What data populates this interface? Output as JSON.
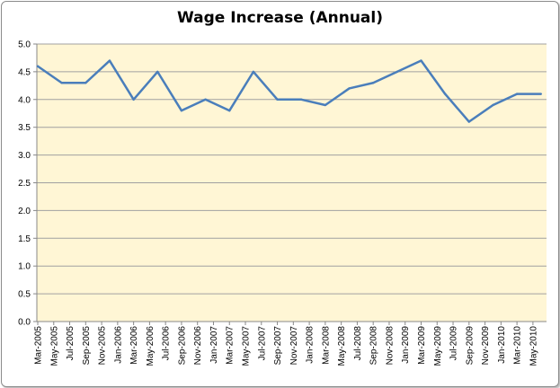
{
  "chart_data": {
    "type": "line",
    "title": "Wage Increase (Annual)",
    "xlabel": "",
    "ylabel": "",
    "ylim": [
      0,
      5
    ],
    "yticks": [
      "0.0",
      "0.5",
      "1.0",
      "1.5",
      "2.0",
      "2.5",
      "3.0",
      "3.5",
      "4.0",
      "4.5",
      "5.0"
    ],
    "xtick_labels": [
      "Mar-2005",
      "May-2005",
      "Jul-2005",
      "Sep-2005",
      "Nov-2005",
      "Jan-2006",
      "Mar-2006",
      "May-2006",
      "Jul-2006",
      "Sep-2006",
      "Nov-2006",
      "Jan-2007",
      "Mar-2007",
      "May-2007",
      "Jul-2007",
      "Sep-2007",
      "Nov-2007",
      "Jan-2008",
      "Mar-2008",
      "May-2008",
      "Jul-2008",
      "Sep-2008",
      "Nov-2008",
      "Jan-2009",
      "Mar-2009",
      "May-2009",
      "Jul-2009",
      "Sep-2009",
      "Nov-2009",
      "Jan-2010",
      "Mar-2010",
      "May-2010"
    ],
    "x": [
      "Mar-2005",
      "Jun-2005",
      "Sep-2005",
      "Dec-2005",
      "Mar-2006",
      "Jun-2006",
      "Sep-2006",
      "Dec-2006",
      "Mar-2007",
      "Jun-2007",
      "Sep-2007",
      "Dec-2007",
      "Mar-2008",
      "Jun-2008",
      "Sep-2008",
      "Dec-2008",
      "Mar-2009",
      "Jun-2009",
      "Sep-2009",
      "Dec-2009",
      "Mar-2010",
      "Jun-2010"
    ],
    "values": [
      4.6,
      4.3,
      4.3,
      4.7,
      4.0,
      4.5,
      3.8,
      4.0,
      3.8,
      4.5,
      4.0,
      4.0,
      3.9,
      4.2,
      4.3,
      4.5,
      4.7,
      4.1,
      3.6,
      3.9,
      4.1,
      4.1
    ],
    "grid": true,
    "legend": "none",
    "colors": {
      "line": "#4a7ebb",
      "plot_bg": "#fff6d5",
      "grid": "#a0a0a0"
    }
  }
}
